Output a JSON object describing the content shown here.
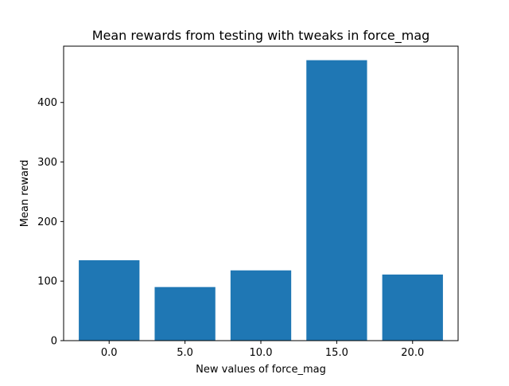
{
  "chart_data": {
    "type": "bar",
    "title": "Mean rewards from testing with tweaks in force_mag",
    "xlabel": "New values of force_mag",
    "ylabel": "Mean reward",
    "categories": [
      "0.0",
      "5.0",
      "10.0",
      "15.0",
      "20.0"
    ],
    "values": [
      135,
      90,
      118,
      471,
      111
    ],
    "ylim": [
      0,
      494.55
    ],
    "yticks": [
      0,
      100,
      200,
      300,
      400
    ],
    "grid": false,
    "bar_color": "#1f77b4"
  }
}
